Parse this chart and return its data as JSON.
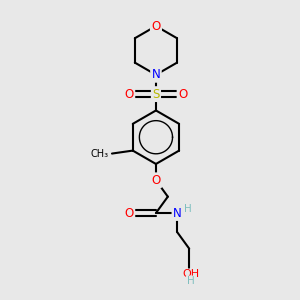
{
  "bg_color": "#e8e8e8",
  "bond_color": "#000000",
  "atom_colors": {
    "O": "#ff0000",
    "N": "#0000ff",
    "S": "#b8b800",
    "H": "#7fbfbf",
    "C": "#000000"
  },
  "figsize": [
    3.0,
    3.0
  ],
  "dpi": 100
}
